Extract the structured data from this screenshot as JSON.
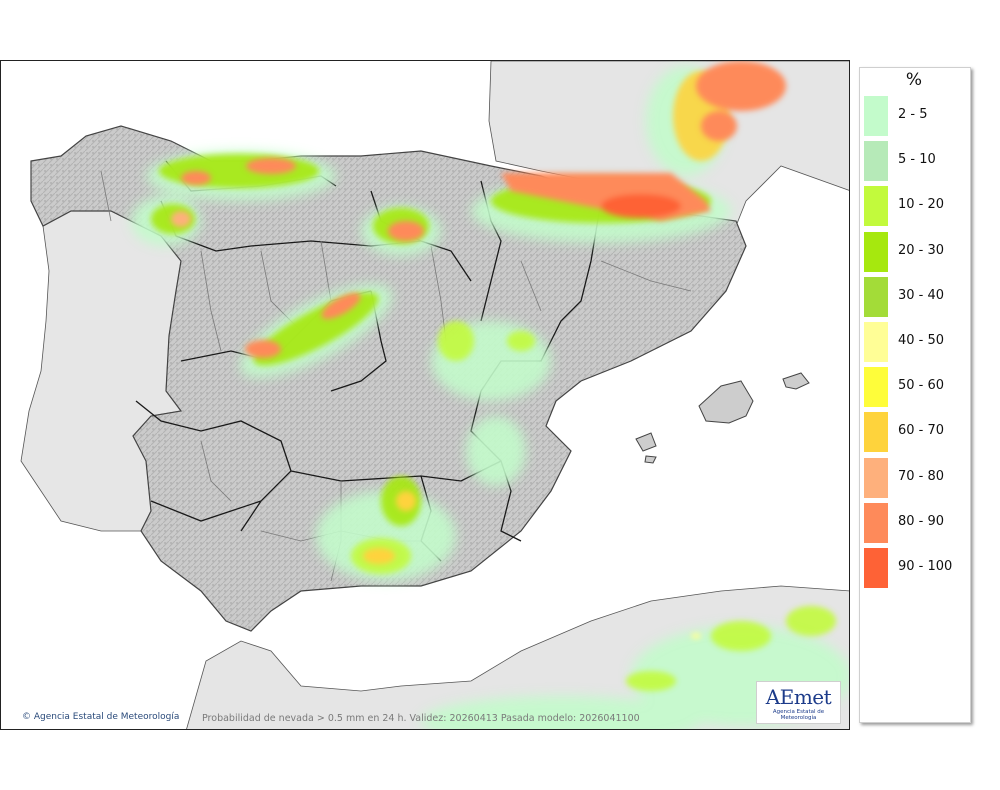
{
  "legend": {
    "unit": "%",
    "items": [
      {
        "label": "2 - 5",
        "color": "#c3fbcb"
      },
      {
        "label": "5 - 10",
        "color": "#b6eab8"
      },
      {
        "label": "10 - 20",
        "color": "#c2fa3c"
      },
      {
        "label": "20 - 30",
        "color": "#a6e80e"
      },
      {
        "label": "30 - 40",
        "color": "#a3dc38"
      },
      {
        "label": "40 - 50",
        "color": "#fffe96"
      },
      {
        "label": "50 - 60",
        "color": "#fefd3a"
      },
      {
        "label": "60 - 70",
        "color": "#fed33c"
      },
      {
        "label": "70 - 80",
        "color": "#feb07c"
      },
      {
        "label": "80 - 90",
        "color": "#fe8a5a"
      },
      {
        "label": "90 - 100",
        "color": "#fe6236"
      }
    ]
  },
  "map": {
    "caption": "Probabilidad de nevada > 0.5 mm en 24 h. Validez: 20260413 Pasada modelo: 2026041100",
    "copyright": "Agencia Estatal de Meteorología",
    "logo_text": "AEmet",
    "logo_subtitle": "Agencia Estatal de Meteorología"
  }
}
